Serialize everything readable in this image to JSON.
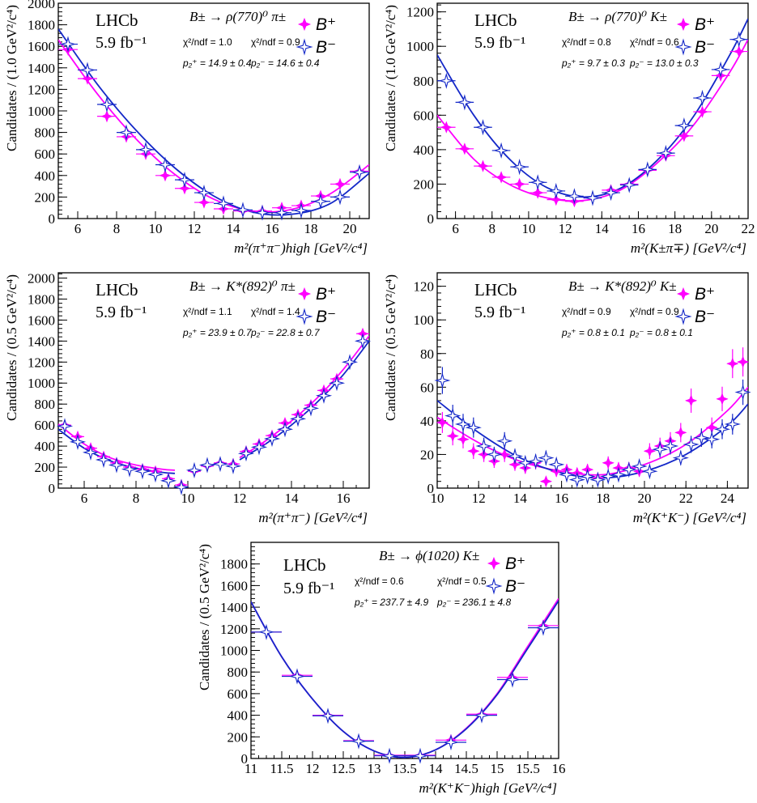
{
  "colors": {
    "b_plus": "#ff00ff",
    "b_minus": "#1428c8",
    "axis": "#000000",
    "fit_overlap": "#9900ff"
  },
  "legend": {
    "b_plus": "B⁺",
    "b_minus": "B⁻"
  },
  "chart_data": [
    {
      "type": "scatter",
      "experiment": "LHCb",
      "lumi": "5.9 fb⁻¹",
      "decay": "B± → ρ(770)⁰ π±",
      "chi2_plus": "χ²/ndf = 1.0",
      "chi2_minus": "χ²/ndf = 0.9",
      "p2_plus": "p₂⁺ = 14.9 ± 0.4",
      "p2_minus": "p₂⁻ = 14.6 ± 0.4",
      "ylabel": "Candidates / (1.0 GeV²/c⁴)",
      "xlabel": "m²(π⁺π⁻)high [GeV²/c⁴]",
      "xlim": [
        5,
        21
      ],
      "ylim": [
        0,
        2000
      ],
      "xticks": [
        6,
        8,
        10,
        12,
        14,
        16,
        18,
        20
      ],
      "yticks": [
        0,
        200,
        400,
        600,
        800,
        1000,
        1200,
        1400,
        1600,
        1800,
        2000
      ],
      "bin_half_width": 0.5,
      "series": [
        {
          "name": "B⁺",
          "x": [
            5.5,
            6.5,
            7.5,
            8.5,
            9.5,
            10.5,
            11.5,
            12.5,
            13.5,
            14.5,
            15.5,
            16.5,
            17.5,
            18.5,
            19.5,
            20.5
          ],
          "y": [
            1570,
            1300,
            950,
            760,
            600,
            400,
            280,
            150,
            90,
            70,
            70,
            100,
            120,
            210,
            320,
            440
          ]
        },
        {
          "name": "B⁻",
          "x": [
            5.5,
            6.5,
            7.5,
            8.5,
            9.5,
            10.5,
            11.5,
            12.5,
            13.5,
            14.5,
            15.5,
            16.5,
            17.5,
            18.5,
            19.5,
            20.5
          ],
          "y": [
            1620,
            1380,
            1060,
            800,
            640,
            500,
            360,
            240,
            140,
            80,
            55,
            55,
            75,
            160,
            200,
            430
          ]
        }
      ],
      "fits": [
        {
          "name": "B⁺",
          "x": [
            5,
            7,
            9,
            11,
            13,
            15,
            17,
            19,
            21
          ],
          "y": [
            1660,
            1160,
            740,
            410,
            180,
            70,
            85,
            230,
            500
          ]
        },
        {
          "name": "B⁻",
          "x": [
            5,
            7,
            9,
            11,
            13,
            15,
            17,
            19,
            21
          ],
          "y": [
            1760,
            1250,
            820,
            470,
            210,
            60,
            40,
            140,
            420
          ]
        }
      ]
    },
    {
      "type": "scatter",
      "experiment": "LHCb",
      "lumi": "5.9 fb⁻¹",
      "decay": "B± → ρ(770)⁰ K±",
      "chi2_plus": "χ²/ndf = 0.8",
      "chi2_minus": "χ²/ndf = 0.6",
      "p2_plus": "p₂⁺ = 9.7 ± 0.3",
      "p2_minus": "p₂⁻ = 13.0 ± 0.3",
      "ylabel": "Candidates / (1.0 GeV²/c⁴)",
      "xlabel": "m²(K±π∓) [GeV²/c⁴]",
      "xlim": [
        5,
        22
      ],
      "ylim": [
        0,
        1250
      ],
      "xticks": [
        6,
        8,
        10,
        12,
        14,
        16,
        18,
        20,
        22
      ],
      "yticks": [
        0,
        200,
        400,
        600,
        800,
        1000,
        1200
      ],
      "bin_half_width": 0.5,
      "series": [
        {
          "name": "B⁺",
          "x": [
            5.5,
            6.5,
            7.5,
            8.5,
            9.5,
            10.5,
            11.5,
            12.5,
            13.5,
            14.5,
            15.5,
            16.5,
            17.5,
            18.5,
            19.5,
            20.5,
            21.5
          ],
          "y": [
            530,
            405,
            305,
            240,
            200,
            150,
            110,
            100,
            120,
            165,
            200,
            280,
            365,
            480,
            620,
            830,
            970
          ]
        },
        {
          "name": "B⁻",
          "x": [
            5.5,
            6.5,
            7.5,
            8.5,
            9.5,
            10.5,
            11.5,
            12.5,
            13.5,
            14.5,
            15.5,
            16.5,
            17.5,
            18.5,
            19.5,
            20.5,
            21.5
          ],
          "y": [
            800,
            675,
            530,
            395,
            300,
            210,
            160,
            130,
            120,
            150,
            195,
            285,
            380,
            540,
            700,
            865,
            1040
          ]
        }
      ],
      "fits": [
        {
          "name": "B⁺",
          "x": [
            5,
            7,
            9,
            11,
            13,
            15,
            17,
            19,
            21,
            22
          ],
          "y": [
            600,
            345,
            195,
            120,
            105,
            165,
            320,
            540,
            850,
            1040
          ]
        },
        {
          "name": "B⁻",
          "x": [
            5,
            7,
            9,
            11,
            13,
            15,
            17,
            19,
            21,
            22
          ],
          "y": [
            950,
            600,
            340,
            180,
            125,
            175,
            335,
            590,
            950,
            1160
          ]
        }
      ]
    },
    {
      "type": "scatter",
      "experiment": "LHCb",
      "lumi": "5.9 fb⁻¹",
      "decay": "B± → K*(892)⁰ π±",
      "chi2_plus": "χ²/ndf = 1.1",
      "chi2_minus": "χ²/ndf = 1.4",
      "p2_plus": "p₂⁺ = 23.9 ± 0.7",
      "p2_minus": "p₂⁻ = 22.8 ± 0.7",
      "ylabel": "Candidates / (0.5 GeV²/c⁴)",
      "xlabel": "m²(π⁺π⁻) [GeV²/c⁴]",
      "xlim": [
        5,
        17
      ],
      "ylim": [
        0,
        2050
      ],
      "xticks": [
        6,
        8,
        10,
        12,
        14,
        16
      ],
      "yticks": [
        0,
        200,
        400,
        600,
        800,
        1000,
        1200,
        1400,
        1600,
        1800,
        2000
      ],
      "bin_half_width": 0.25,
      "series": [
        {
          "name": "B⁺",
          "x": [
            5.25,
            5.75,
            6.25,
            6.75,
            7.25,
            7.75,
            8.25,
            8.75,
            9.25,
            9.75,
            10.25,
            10.75,
            11.25,
            11.75,
            12.25,
            12.75,
            13.25,
            13.75,
            14.25,
            14.75,
            15.25,
            15.75,
            16.25,
            16.75
          ],
          "y": [
            600,
            490,
            380,
            300,
            240,
            200,
            180,
            160,
            90,
            30,
            160,
            210,
            240,
            230,
            350,
            420,
            500,
            620,
            700,
            790,
            930,
            1040,
            1200,
            1470
          ]
        },
        {
          "name": "B⁻",
          "x": [
            5.25,
            5.75,
            6.25,
            6.75,
            7.25,
            7.75,
            8.25,
            8.75,
            9.25,
            9.75,
            10.25,
            10.75,
            11.25,
            11.75,
            12.25,
            12.75,
            13.25,
            13.75,
            14.25,
            14.75,
            15.25,
            15.75,
            16.25,
            16.75
          ],
          "y": [
            590,
            440,
            340,
            270,
            220,
            180,
            160,
            130,
            70,
            10,
            170,
            220,
            230,
            210,
            330,
            390,
            470,
            560,
            660,
            760,
            880,
            1000,
            1200,
            1400
          ]
        }
      ],
      "fits": [
        {
          "name": "B⁺",
          "x": [
            5,
            6,
            7,
            8,
            9,
            9.5
          ],
          "y": [
            610,
            420,
            290,
            220,
            180,
            170
          ]
        },
        {
          "name": "B⁺",
          "x": [
            12,
            13,
            14,
            15,
            16,
            17
          ],
          "y": [
            290,
            450,
            640,
            860,
            1130,
            1450
          ]
        },
        {
          "name": "B⁻",
          "x": [
            5,
            6,
            7,
            8,
            9,
            9.5
          ],
          "y": [
            560,
            380,
            260,
            190,
            150,
            140
          ]
        },
        {
          "name": "B⁻",
          "x": [
            12,
            13,
            14,
            15,
            16,
            17
          ],
          "y": [
            270,
            420,
            600,
            820,
            1080,
            1400
          ]
        }
      ]
    },
    {
      "type": "scatter",
      "experiment": "LHCb",
      "lumi": "5.9 fb⁻¹",
      "decay": "B± → K*(892)⁰ K±",
      "chi2_plus": "χ²/ndf = 0.9",
      "chi2_minus": "χ²/ndf = 0.9",
      "p2_plus": "p₂⁺ = 0.8 ± 0.1",
      "p2_minus": "p₂⁻ = 0.8 ± 0.1",
      "ylabel": "Candidates / (0.5 GeV²/c⁴)",
      "xlabel": "m²(K⁺K⁻) [GeV²/c⁴]",
      "xlim": [
        10,
        25
      ],
      "ylim": [
        0,
        128
      ],
      "xticks": [
        10,
        12,
        14,
        16,
        18,
        20,
        22,
        24
      ],
      "yticks": [
        0,
        20,
        40,
        60,
        80,
        100,
        120
      ],
      "bin_half_width": 0.25,
      "series": [
        {
          "name": "B⁺",
          "x": [
            10.25,
            10.75,
            11.25,
            11.75,
            12.25,
            12.75,
            13.25,
            13.75,
            14.25,
            14.75,
            15.25,
            15.75,
            16.25,
            16.75,
            17.25,
            17.75,
            18.25,
            18.75,
            19.25,
            19.75,
            20.25,
            20.75,
            21.25,
            21.75,
            22.25,
            22.75,
            23.25,
            23.75,
            24.25,
            24.75
          ],
          "y": [
            39,
            31,
            29,
            22,
            20,
            16,
            20,
            14,
            12,
            15,
            4,
            10,
            11,
            9,
            11,
            6,
            15,
            12,
            12,
            10,
            22,
            25,
            28,
            33,
            52,
            30,
            36,
            53,
            74,
            75
          ]
        },
        {
          "name": "B⁻",
          "x": [
            10.25,
            10.75,
            11.25,
            11.75,
            12.25,
            12.75,
            13.25,
            13.75,
            14.25,
            14.75,
            15.25,
            15.75,
            16.25,
            16.75,
            17.25,
            17.75,
            18.25,
            18.75,
            19.25,
            19.75,
            20.25,
            20.75,
            21.25,
            21.75,
            22.25,
            22.75,
            23.25,
            23.75,
            24.25,
            24.75
          ],
          "y": [
            64,
            43,
            38,
            36,
            25,
            20,
            28,
            19,
            15,
            16,
            18,
            14,
            8,
            5,
            7,
            5,
            7,
            8,
            11,
            13,
            10,
            23,
            25,
            18,
            26,
            30,
            29,
            35,
            38,
            57
          ]
        }
      ],
      "fits": [
        {
          "name": "B⁺",
          "x": [
            10,
            12,
            14,
            16,
            18,
            20,
            22,
            24,
            25
          ],
          "y": [
            42,
            27,
            16,
            10,
            8,
            14,
            26,
            46,
            60
          ]
        },
        {
          "name": "B⁻",
          "x": [
            10,
            12,
            14,
            16,
            18,
            20,
            22,
            24,
            25
          ],
          "y": [
            52,
            33,
            18,
            9,
            6,
            10,
            20,
            37,
            50
          ]
        }
      ]
    },
    {
      "type": "scatter",
      "experiment": "LHCb",
      "lumi": "5.9 fb⁻¹",
      "decay": "B± → ϕ(1020) K±",
      "chi2_plus": "χ²/ndf = 0.6",
      "chi2_minus": "χ²/ndf = 0.5",
      "p2_plus": "p₂⁺ = 237.7 ± 4.9",
      "p2_minus": "p₂⁻ = 236.1 ± 4.8",
      "ylabel": "Candidates / (0.5 GeV²/c⁴)",
      "xlabel": "m²(K⁺K⁻)high [GeV²/c⁴]",
      "xlim": [
        11,
        16
      ],
      "ylim": [
        0,
        2000
      ],
      "xticks": [
        11,
        11.5,
        12,
        12.5,
        13,
        13.5,
        14,
        14.5,
        15,
        15.5,
        16
      ],
      "xticklabels": [
        "11",
        "11.5",
        "12",
        "12.5",
        "13",
        "13.5",
        "14",
        "14.5",
        "15",
        "15.5",
        "16"
      ],
      "yticks": [
        0,
        200,
        400,
        600,
        800,
        1000,
        1200,
        1400,
        1600,
        1800
      ],
      "bin_half_width": 0.25,
      "series": [
        {
          "name": "B⁺",
          "x": [
            11.25,
            11.75,
            12.25,
            12.75,
            13.25,
            13.75,
            14.25,
            14.75,
            15.25,
            15.75
          ],
          "y": [
            1170,
            770,
            400,
            165,
            30,
            30,
            170,
            410,
            750,
            1230
          ]
        },
        {
          "name": "B⁻",
          "x": [
            11.25,
            11.75,
            12.25,
            12.75,
            13.25,
            13.75,
            14.25,
            14.75,
            15.25,
            15.75
          ],
          "y": [
            1170,
            760,
            395,
            160,
            25,
            25,
            150,
            400,
            730,
            1210
          ]
        }
      ],
      "fits": [
        {
          "name": "B⁺",
          "x": [
            11,
            11.5,
            12,
            12.5,
            13,
            13.5,
            14,
            14.5,
            15,
            15.5,
            16
          ],
          "y": [
            1450,
            940,
            550,
            250,
            70,
            10,
            80,
            280,
            600,
            1040,
            1480
          ]
        },
        {
          "name": "B⁻",
          "x": [
            11,
            11.5,
            12,
            12.5,
            13,
            13.5,
            14,
            14.5,
            15,
            15.5,
            16
          ],
          "y": [
            1450,
            940,
            550,
            250,
            70,
            10,
            80,
            275,
            590,
            1020,
            1460
          ]
        }
      ]
    }
  ]
}
